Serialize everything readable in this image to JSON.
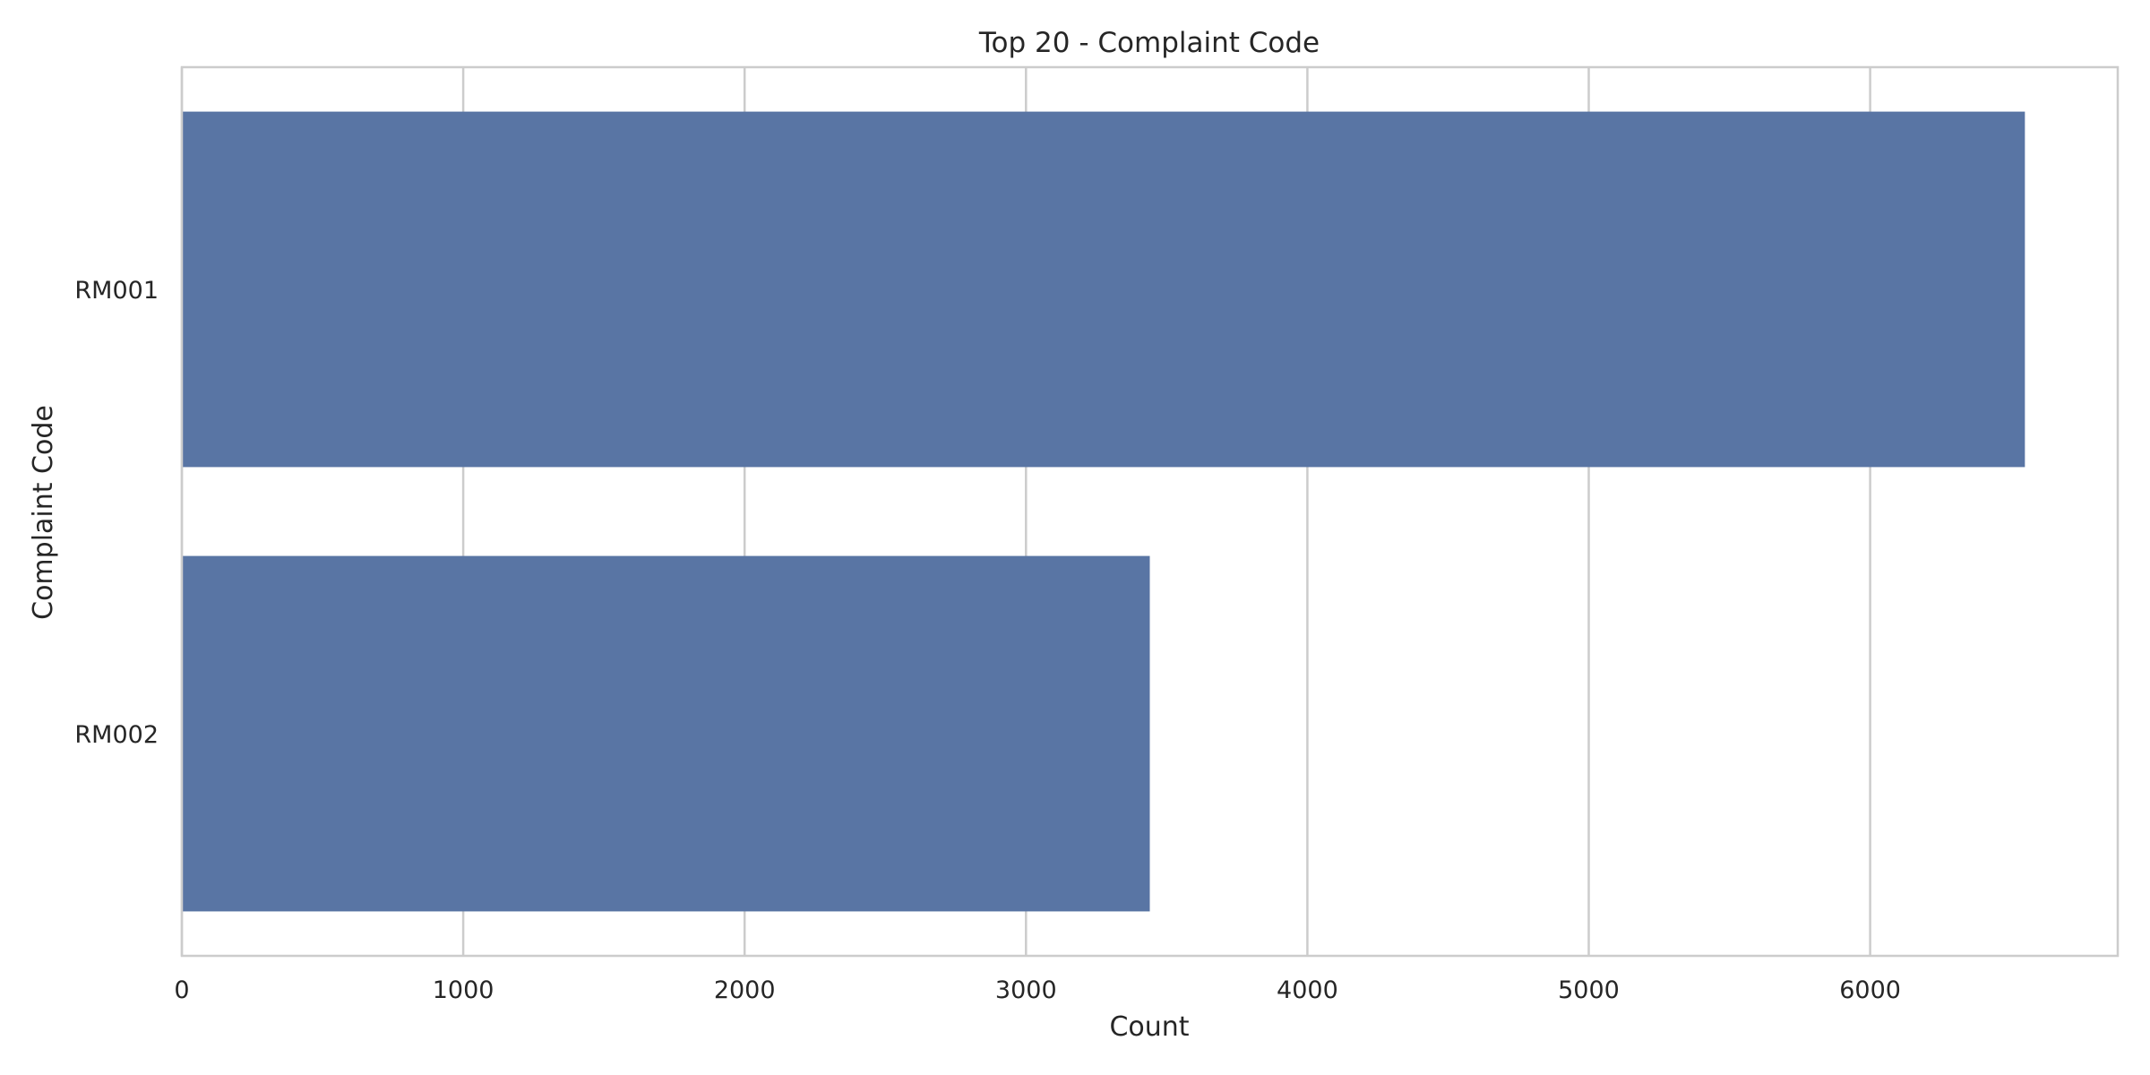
{
  "chart_data": {
    "type": "bar",
    "orientation": "horizontal",
    "title": "Top 20 - Complaint Code",
    "xlabel": "Count",
    "ylabel": "Complaint Code",
    "categories": [
      "RM001",
      "RM002"
    ],
    "values": [
      6550,
      3440
    ],
    "xlim": [
      0,
      6880
    ],
    "xticks": [
      0,
      1000,
      2000,
      3000,
      4000,
      5000,
      6000
    ],
    "grid": true,
    "bar_color": "#5975a4",
    "grid_color": "#cccccc",
    "axes_color": "#cccccc"
  }
}
